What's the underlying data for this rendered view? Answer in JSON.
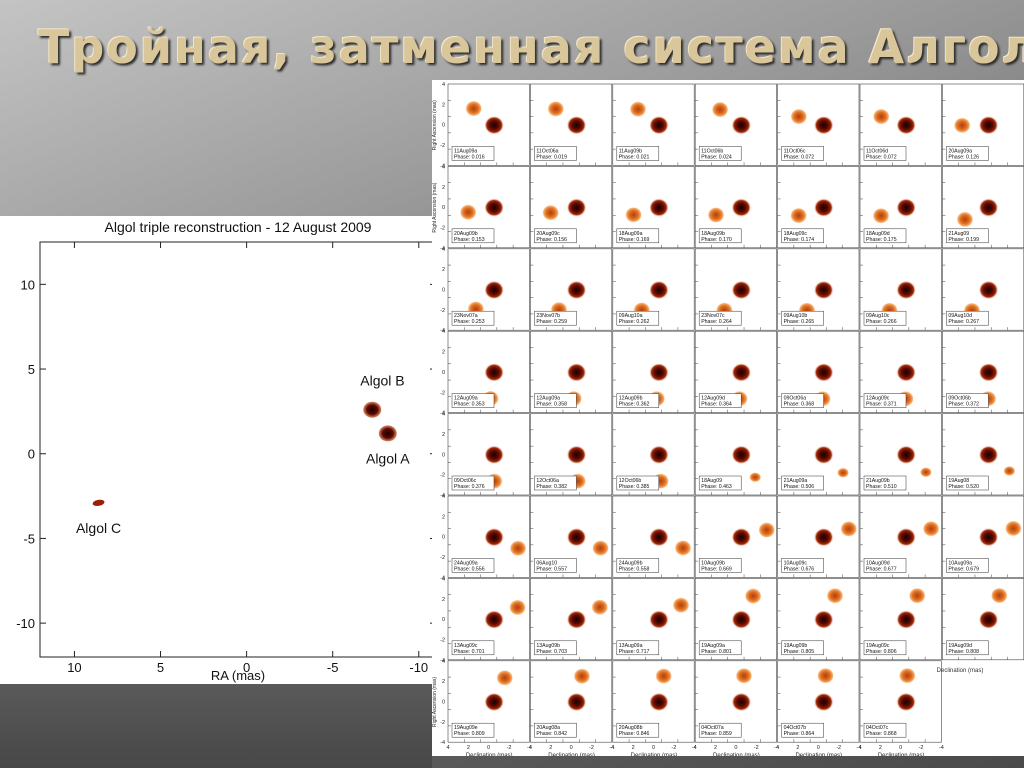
{
  "slide": {
    "title": "Тройная, затменная система Алголя"
  },
  "chart_data": [
    {
      "type": "scatter",
      "title": "Algol triple reconstruction - 12 August 2009",
      "xlabel": "RA (mas)",
      "ylabel": "",
      "xlim": [
        12,
        -11
      ],
      "ylim": [
        -12,
        12.5
      ],
      "x_ticks": [
        10,
        5,
        0,
        -5,
        -10
      ],
      "y_ticks": [
        10,
        5,
        0,
        -5,
        -10
      ],
      "x_tick_labels": [
        "10",
        "5",
        "0",
        "-5",
        "-10"
      ],
      "y_tick_labels": [
        "10",
        "5",
        "0",
        "-5",
        "-10"
      ],
      "grid": false,
      "points": [
        {
          "label": "Algol A",
          "x": -8.2,
          "y": 1.2,
          "color": "#3a0500"
        },
        {
          "label": "Algol B",
          "x": -7.3,
          "y": 2.6,
          "color": "#c25510"
        },
        {
          "label": "Algol C",
          "x": 8.6,
          "y": -2.9,
          "color": "#9a1f05"
        }
      ]
    },
    {
      "type": "image-grid",
      "xlabel": "Declination (mas)",
      "ylabel": "Right Ascension (mas)",
      "tick_labels": [
        "4",
        "2",
        "0",
        "-2",
        "-4"
      ],
      "rows": 8,
      "cols": 7,
      "panels": [
        {
          "date": "11Aug09a",
          "phase": "0.016"
        },
        {
          "date": "11Oct06a",
          "phase": "0.019"
        },
        {
          "date": "11Aug09b",
          "phase": "0.021"
        },
        {
          "date": "11Oct06b",
          "phase": "0.024"
        },
        {
          "date": "11Oct06c",
          "phase": "0.072"
        },
        {
          "date": "11Oct06d",
          "phase": "0.072"
        },
        {
          "date": "20Aug09a",
          "phase": "0.126"
        },
        {
          "date": "20Aug09b",
          "phase": "0.153"
        },
        {
          "date": "20Aug09c",
          "phase": "0.156"
        },
        {
          "date": "18Aug09a",
          "phase": "0.169"
        },
        {
          "date": "18Aug09b",
          "phase": "0.170"
        },
        {
          "date": "18Aug09c",
          "phase": "0.174"
        },
        {
          "date": "18Aug09d",
          "phase": "0.175"
        },
        {
          "date": "21Aug09",
          "phase": "0.199"
        },
        {
          "date": "23Nov07a",
          "phase": "0.253"
        },
        {
          "date": "23Nov07b",
          "phase": "0.259"
        },
        {
          "date": "09Aug10a",
          "phase": "0.262"
        },
        {
          "date": "23Nov07c",
          "phase": "0.264"
        },
        {
          "date": "09Aug10b",
          "phase": "0.265"
        },
        {
          "date": "09Aug10c",
          "phase": "0.266"
        },
        {
          "date": "09Aug10d",
          "phase": "0.267"
        },
        {
          "date": "12Aug09a",
          "phase": "0.353"
        },
        {
          "date": "12Aug09a",
          "phase": "0.358"
        },
        {
          "date": "12Aug09b",
          "phase": "0.362"
        },
        {
          "date": "12Aug09d",
          "phase": "0.364"
        },
        {
          "date": "09Oct06a",
          "phase": "0.368"
        },
        {
          "date": "12Aug09c",
          "phase": "0.371"
        },
        {
          "date": "09Oct06b",
          "phase": "0.372"
        },
        {
          "date": "09Oct06c",
          "phase": "0.376"
        },
        {
          "date": "12Oct06a",
          "phase": "0.382"
        },
        {
          "date": "12Oct06b",
          "phase": "0.385"
        },
        {
          "date": "18Aug09",
          "phase": "0.463"
        },
        {
          "date": "21Aug09a",
          "phase": "0.506"
        },
        {
          "date": "21Aug09b",
          "phase": "0.510"
        },
        {
          "date": "19Aug08",
          "phase": "0.520"
        },
        {
          "date": "24Aug09a",
          "phase": "0.556"
        },
        {
          "date": "06Aug10",
          "phase": "0.557"
        },
        {
          "date": "24Aug09b",
          "phase": "0.558"
        },
        {
          "date": "10Aug09b",
          "phase": "0.669"
        },
        {
          "date": "10Aug09c",
          "phase": "0.676"
        },
        {
          "date": "10Aug09d",
          "phase": "0.677"
        },
        {
          "date": "10Aug09a",
          "phase": "0.679"
        },
        {
          "date": "13Aug09c",
          "phase": "0.701"
        },
        {
          "date": "13Aug09b",
          "phase": "0.703"
        },
        {
          "date": "13Aug09a",
          "phase": "0.717"
        },
        {
          "date": "19Aug09a",
          "phase": "0.801"
        },
        {
          "date": "19Aug09b",
          "phase": "0.805"
        },
        {
          "date": "19Aug09c",
          "phase": "0.806"
        },
        {
          "date": "19Aug09d",
          "phase": "0.808"
        },
        {
          "date": "19Aug09e",
          "phase": "0.809"
        },
        {
          "date": "20Aug08a",
          "phase": "0.842"
        },
        {
          "date": "20Aug08b",
          "phase": "0.846"
        },
        {
          "date": "04Oct07a",
          "phase": "0.859"
        },
        {
          "date": "04Oct07b",
          "phase": "0.864"
        },
        {
          "date": "04Oct07c",
          "phase": "0.868"
        }
      ]
    }
  ]
}
